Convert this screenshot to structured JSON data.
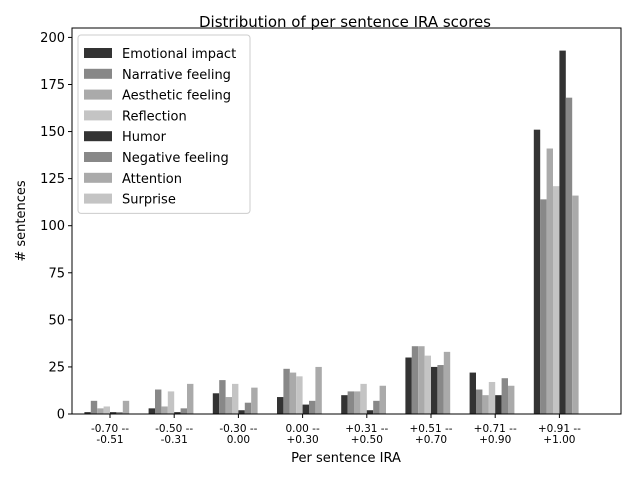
{
  "chart_data": {
    "type": "bar",
    "title": "Distribution of per sentence IRA scores",
    "xlabel": "Per sentence IRA",
    "ylabel": "# sentences",
    "ylim": [
      0,
      205
    ],
    "yticks": [
      0,
      25,
      50,
      75,
      100,
      125,
      150,
      175,
      200
    ],
    "grid": false,
    "legend_position": "top-left",
    "categories": [
      [
        "-0.70 --",
        "-0.51"
      ],
      [
        "-0.50 --",
        "-0.31"
      ],
      [
        "-0.30 --",
        "0.00"
      ],
      [
        "0.00 --",
        "+0.30"
      ],
      [
        "+0.31 --",
        "+0.50"
      ],
      [
        "+0.51 --",
        "+0.70"
      ],
      [
        "+0.71 --",
        "+0.90"
      ],
      [
        "+0.91 --",
        "+1.00"
      ]
    ],
    "series": [
      {
        "name": "Emotional impact",
        "color": "#333333",
        "values": [
          1,
          3,
          11,
          9,
          10,
          30,
          22,
          151
        ]
      },
      {
        "name": "Narrative feeling",
        "color": "#888888",
        "values": [
          7,
          13,
          18,
          24,
          12,
          36,
          13,
          114
        ]
      },
      {
        "name": "Aesthetic feeling",
        "color": "#aaaaaa",
        "values": [
          3,
          4,
          9,
          22,
          12,
          36,
          10,
          141
        ]
      },
      {
        "name": "Reflection",
        "color": "#c4c4c4",
        "values": [
          4,
          12,
          16,
          20,
          16,
          31,
          17,
          121
        ]
      },
      {
        "name": "Humor",
        "color": "#333333",
        "values": [
          1,
          1,
          2,
          5,
          2,
          25,
          10,
          193
        ]
      },
      {
        "name": "Negative feeling",
        "color": "#888888",
        "values": [
          1,
          3,
          6,
          7,
          7,
          26,
          19,
          168
        ]
      },
      {
        "name": "Attention",
        "color": "#aaaaaa",
        "values": [
          7,
          16,
          14,
          25,
          15,
          33,
          15,
          116
        ]
      },
      {
        "name": "Surprise",
        "color": "#c4c4c4",
        "values": [
          0,
          0,
          0,
          0,
          0,
          0,
          0,
          0
        ]
      }
    ]
  }
}
